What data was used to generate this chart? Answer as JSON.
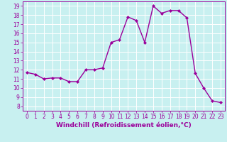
{
  "x": [
    0,
    1,
    2,
    3,
    4,
    5,
    6,
    7,
    8,
    9,
    10,
    11,
    12,
    13,
    14,
    15,
    16,
    17,
    18,
    19,
    20,
    21,
    22,
    23
  ],
  "y": [
    11.7,
    11.5,
    11.0,
    11.1,
    11.1,
    10.7,
    10.7,
    12.0,
    12.0,
    12.2,
    15.0,
    15.3,
    17.8,
    17.4,
    15.0,
    19.0,
    18.2,
    18.5,
    18.5,
    17.7,
    11.6,
    10.0,
    8.6,
    8.4
  ],
  "line_color": "#9b009b",
  "marker": "D",
  "marker_size": 2,
  "bg_color": "#c8f0f0",
  "grid_color": "#ffffff",
  "xlabel": "Windchill (Refroidissement éolien,°C)",
  "xlabel_fontsize": 6.5,
  "xlim": [
    -0.5,
    23.5
  ],
  "ylim": [
    7.5,
    19.5
  ],
  "yticks": [
    8,
    9,
    10,
    11,
    12,
    13,
    14,
    15,
    16,
    17,
    18,
    19
  ],
  "xticks": [
    0,
    1,
    2,
    3,
    4,
    5,
    6,
    7,
    8,
    9,
    10,
    11,
    12,
    13,
    14,
    15,
    16,
    17,
    18,
    19,
    20,
    21,
    22,
    23
  ],
  "tick_fontsize": 5.5,
  "tick_color": "#9b009b",
  "line_width": 1.0
}
